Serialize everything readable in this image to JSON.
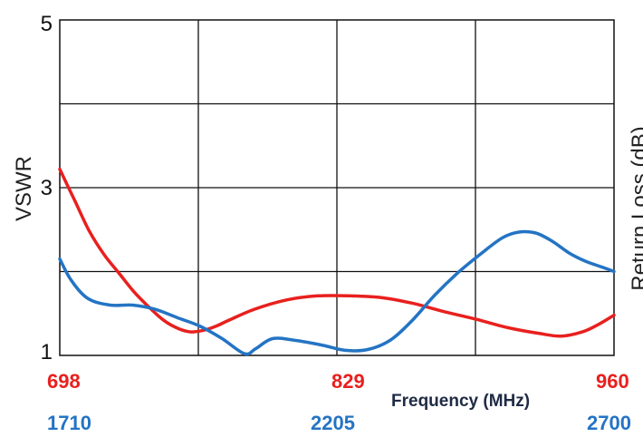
{
  "chart_data": {
    "type": "line",
    "title": "",
    "ylabel": "VSWR",
    "ylabel_right": "Return Loss (dB)",
    "xlabel": "Frequency (MHz)",
    "ylim": [
      1,
      5
    ],
    "y_ticks": [
      "5",
      "3",
      "1"
    ],
    "x_top_ticks": [
      "698",
      "829",
      "960"
    ],
    "x_bottom_ticks": [
      "1710",
      "2205",
      "2700"
    ],
    "grid": true,
    "colors": {
      "red": "#e8201e",
      "blue": "#2474c4"
    },
    "series": [
      {
        "axis": "698-960 MHz",
        "color": "#e8201e",
        "x": [
          698,
          705,
          712,
          719,
          726,
          733,
          740,
          747,
          754,
          760,
          766,
          772,
          778,
          790,
          805,
          820,
          835,
          850,
          865,
          880,
          895,
          910,
          925,
          935,
          945,
          952,
          960
        ],
        "y": [
          3.22,
          2.85,
          2.48,
          2.2,
          1.98,
          1.76,
          1.58,
          1.42,
          1.32,
          1.28,
          1.3,
          1.35,
          1.42,
          1.55,
          1.66,
          1.71,
          1.71,
          1.69,
          1.62,
          1.52,
          1.43,
          1.33,
          1.26,
          1.23,
          1.28,
          1.36,
          1.48
        ]
      },
      {
        "axis": "1710-2700 MHz",
        "color": "#2474c4",
        "x": [
          1710,
          1730,
          1760,
          1800,
          1840,
          1880,
          1920,
          1960,
          2000,
          2040,
          2060,
          2090,
          2130,
          2180,
          2220,
          2260,
          2300,
          2340,
          2380,
          2420,
          2460,
          2500,
          2530,
          2560,
          2590,
          2620,
          2650,
          2680,
          2700
        ],
        "y": [
          2.15,
          1.9,
          1.68,
          1.6,
          1.6,
          1.55,
          1.45,
          1.35,
          1.2,
          1.02,
          1.08,
          1.2,
          1.18,
          1.12,
          1.06,
          1.07,
          1.18,
          1.42,
          1.72,
          1.98,
          2.2,
          2.4,
          2.47,
          2.46,
          2.36,
          2.22,
          2.12,
          2.05,
          2.0
        ]
      }
    ]
  }
}
